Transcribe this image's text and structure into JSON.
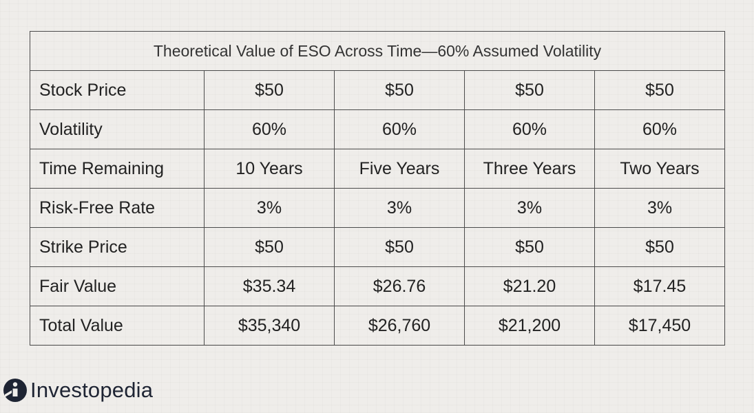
{
  "chart_data": {
    "type": "table",
    "title": "Theoretical Value of ESO Across Time—60% Assumed Volatility",
    "rows": [
      {
        "label": "Stock Price",
        "values": [
          "$50",
          "$50",
          "$50",
          "$50"
        ]
      },
      {
        "label": "Volatility",
        "values": [
          "60%",
          "60%",
          "60%",
          "60%"
        ]
      },
      {
        "label": "Time Remaining",
        "values": [
          "10 Years",
          "Five Years",
          "Three Years",
          "Two Years"
        ]
      },
      {
        "label": "Risk-Free Rate",
        "values": [
          "3%",
          "3%",
          "3%",
          "3%"
        ]
      },
      {
        "label": "Strike Price",
        "values": [
          "$50",
          "$50",
          "$50",
          "$50"
        ]
      },
      {
        "label": "Fair Value",
        "values": [
          "$35.34",
          "$26.76",
          "$21.20",
          "$17.45"
        ]
      },
      {
        "label": "Total Value",
        "values": [
          "$35,340",
          "$26,760",
          "$21,200",
          "$17,450"
        ]
      }
    ]
  },
  "brand": {
    "name": "Investopedia",
    "icon": "investopedia-logo-icon",
    "color": "#1e2433"
  },
  "colors": {
    "background": "#efedea",
    "border": "#4a4a4a",
    "text": "#222222"
  }
}
